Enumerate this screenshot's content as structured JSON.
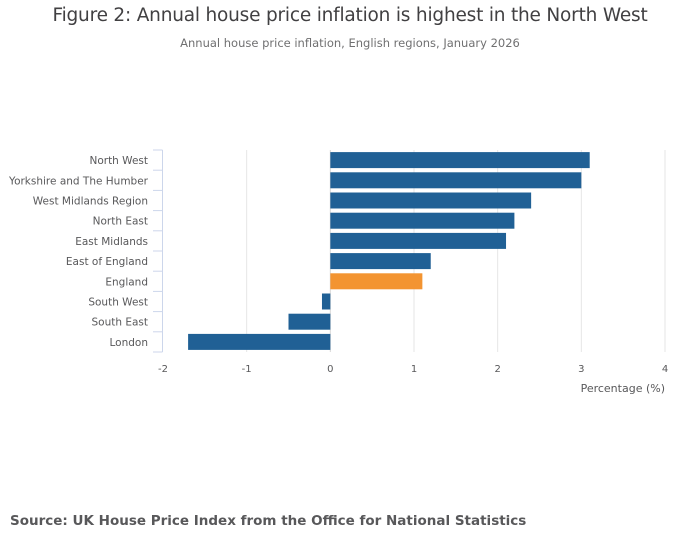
{
  "chart_data": {
    "type": "bar",
    "orientation": "horizontal",
    "title": "Figure 2: Annual house price inflation is highest in the North West",
    "subtitle": "Annual house price inflation, English regions, January 2026",
    "xlabel": "Percentage (%)",
    "ylabel": "",
    "xlim": [
      -2,
      4
    ],
    "xticks": [
      -2,
      -1,
      0,
      1,
      2,
      3,
      4
    ],
    "grid": true,
    "categories": [
      "North West",
      "Yorkshire and The Humber",
      "West Midlands Region",
      "North East",
      "East Midlands",
      "East of England",
      "England",
      "South West",
      "South East",
      "London"
    ],
    "values": [
      3.1,
      3.0,
      2.4,
      2.2,
      2.1,
      1.2,
      1.1,
      -0.1,
      -0.5,
      -1.7
    ],
    "highlight": [
      "England"
    ],
    "colors": {
      "default": "#206095",
      "highlight": "#F39431"
    },
    "source": "Source: UK House Price Index from the Office for National Statistics"
  }
}
